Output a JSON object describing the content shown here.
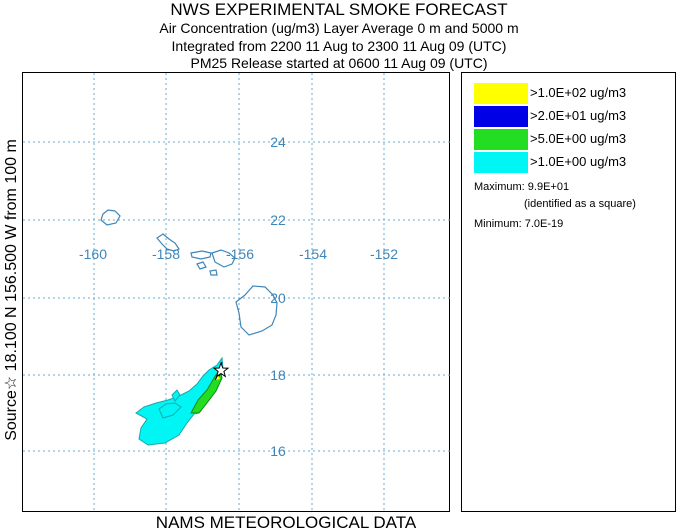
{
  "header": {
    "title": "NWS EXPERIMENTAL SMOKE FORECAST",
    "line1": "Air Concentration (ug/m3) Layer Average    0 m and  5000 m",
    "line2": "Integrated from 2200 11 Aug to 2300 11 Aug 09 (UTC)",
    "line3": "PM25 Release started at 0600 11 Aug 09 (UTC)"
  },
  "side_label": "Source☆ 18.100  N 156.500  W    from  100 m",
  "footer": "NAMS METEOROLOGICAL DATA",
  "map": {
    "lon_labels": [
      "-160",
      "-158",
      "-156",
      "-154",
      "-152"
    ],
    "lat_labels": [
      "24",
      "22",
      "20",
      "18",
      "16"
    ],
    "source_marker": "star-icon",
    "colors": {
      "grid": "#6aa8d4",
      "coast": "#3f86b8",
      "label": "#3f86b8"
    }
  },
  "legend": {
    "items": [
      {
        "color": "#ffff00",
        "label": ">1.0E+02 ug/m3"
      },
      {
        "color": "#0000e6",
        "label": ">2.0E+01 ug/m3"
      },
      {
        "color": "#22dd22",
        "label": ">5.0E+00 ug/m3"
      },
      {
        "color": "#00f5f5",
        "label": ">1.0E+00 ug/m3"
      }
    ],
    "maximum": "Maximum: 9.9E+01",
    "maximum_note": "(identified as a square)",
    "minimum": "Minimum: 7.0E-19"
  }
}
